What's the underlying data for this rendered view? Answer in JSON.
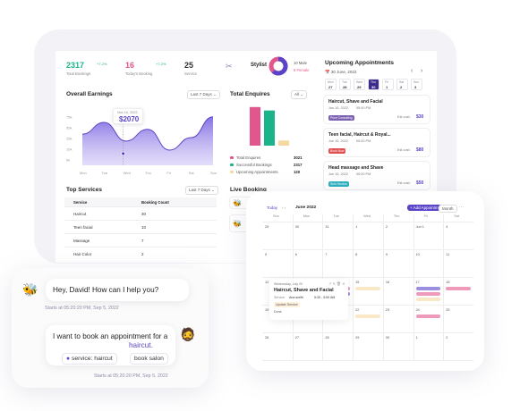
{
  "stats": [
    {
      "value": "2317",
      "label": "Total Bookings",
      "delta": "+7.2%",
      "color": "#1bb48a"
    },
    {
      "value": "16",
      "label": "Today's Booking",
      "delta": "+7.2%",
      "color": "#e2568e"
    },
    {
      "value": "25",
      "label": "Service",
      "delta": "",
      "color": "#333"
    }
  ],
  "stylist": {
    "label": "Stylist",
    "male": "10 Male",
    "female": "6 Female"
  },
  "earnings": {
    "title": "Overall Earnings",
    "filter": "Last 7 Days",
    "tooltip_date": "Nov 10, 2022",
    "tooltip_value": "$2070",
    "y_ticks": [
      "75k",
      "50k",
      "25k",
      "10k",
      "5k"
    ],
    "x_ticks": [
      "Mon",
      "Tue",
      "Wed",
      "Thu",
      "Fri",
      "Sat",
      "Sun"
    ]
  },
  "chart_data": {
    "type": "area",
    "x": [
      "Mon",
      "Tue",
      "Wed",
      "Thu",
      "Fri",
      "Sat",
      "Sun"
    ],
    "values": [
      45,
      62,
      35,
      52,
      22,
      40,
      70
    ]
  },
  "enquiries": {
    "title": "Total Enquires",
    "filter": "All",
    "legend": [
      {
        "label": "Total Enquires",
        "value": "3021",
        "color": "#e2568e"
      },
      {
        "label": "Successful Bookings",
        "value": "2317",
        "color": "#1bb48a"
      },
      {
        "label": "Upcoming Appointments",
        "value": "120",
        "color": "#f3d9a0"
      }
    ],
    "bars": [
      {
        "v": 0.9,
        "c": "#e2568e"
      },
      {
        "v": 0.82,
        "c": "#1bb48a"
      },
      {
        "v": 0.12,
        "c": "#f3d9a0"
      }
    ]
  },
  "upcoming": {
    "title": "Upcoming Appointments",
    "date": "30 June, 2022",
    "days": [
      {
        "d": "Mon",
        "n": "27"
      },
      {
        "d": "Tue",
        "n": "28"
      },
      {
        "d": "Wed",
        "n": "29"
      },
      {
        "d": "Thu",
        "n": "30"
      },
      {
        "d": "Fri",
        "n": "1"
      },
      {
        "d": "Sat",
        "n": "2"
      },
      {
        "d": "Sun",
        "n": "3"
      }
    ],
    "items": [
      {
        "title": "Haircut, Shave and Facial",
        "date": "Jun 10, 2022",
        "time": "05:00 PM",
        "tag": "Price Consulting",
        "tag_color": "#7b5fb0",
        "cost_label": "Est cost:",
        "cost": "$30"
      },
      {
        "title": "Teen facial, Haircut & Royal...",
        "date": "Jun 10, 2022",
        "time": "05:00 PM",
        "tag": "Book Now",
        "tag_color": "#e05050",
        "cost_label": "Est cost:",
        "cost": "$80"
      },
      {
        "title": "Head massage and Shave",
        "date": "Jun 10, 2022",
        "time": "05:00 PM",
        "tag": "Skin Service",
        "tag_color": "#2ab0c0",
        "cost_label": "Est cost:",
        "cost": "$50"
      }
    ]
  },
  "services": {
    "title": "Top Services",
    "filter": "Last 7 Days",
    "col1": "Service",
    "col2": "Booking Count",
    "rows": [
      {
        "name": "Haircut",
        "count": "30"
      },
      {
        "name": "Teen facial",
        "count": "10"
      },
      {
        "name": "Massage",
        "count": "7"
      },
      {
        "name": "Hair Color",
        "count": "2"
      }
    ]
  },
  "live": {
    "title": "Live Booking"
  },
  "calendar": {
    "today": "Today",
    "month": "June 2022",
    "add": "+ Add Appointment",
    "filter": "Month",
    "weekdays": [
      "Sun",
      "Mon",
      "Tue",
      "Wed",
      "Thu",
      "Fri",
      "Sat"
    ],
    "weeks": [
      [
        "29",
        "30",
        "31",
        "1",
        "2",
        "Jun 1",
        "4"
      ],
      [
        "5",
        "6",
        "7",
        "8",
        "9",
        "10",
        "11"
      ],
      [
        "12",
        "13",
        "14",
        "15",
        "16",
        "17",
        "18"
      ],
      [
        "19",
        "20",
        "21",
        "22",
        "23",
        "24",
        "25"
      ],
      [
        "26",
        "27",
        "28",
        "29",
        "30",
        "1",
        "2"
      ]
    ],
    "popup": {
      "date": "Wednesday, July 20",
      "title": "Haircut, Shave and Facial",
      "service_label": "Service:",
      "service": "Ana smith",
      "time": "5:30 - 5:00 AM",
      "status": "Update Service",
      "note": "Done"
    }
  },
  "chat": {
    "greeting": "Hey, David! How can I help you?",
    "time1": "Starts at 05:20:20 PM, Sep 5, 2022",
    "request_prefix": "I want to book an appointment for a",
    "request_link": "haircut.",
    "service_chip": "service: haircut",
    "book_chip": "book salon",
    "time2": "Starts at 05:20:20 PM, Sep 5, 2022"
  }
}
